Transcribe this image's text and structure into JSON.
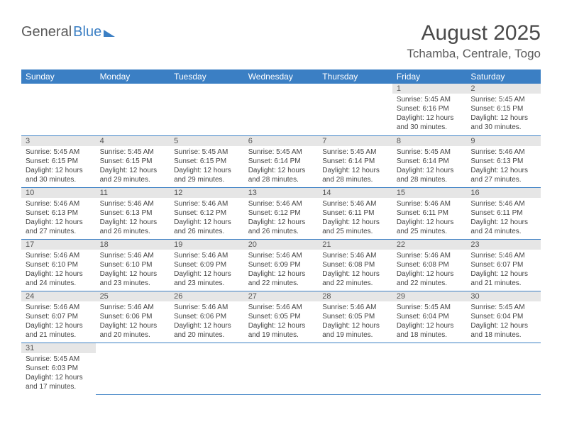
{
  "brand": {
    "text1": "General",
    "text2": "Blue"
  },
  "title": "August 2025",
  "location": "Tchamba, Centrale, Togo",
  "day_headers": [
    "Sunday",
    "Monday",
    "Tuesday",
    "Wednesday",
    "Thursday",
    "Friday",
    "Saturday"
  ],
  "colors": {
    "header_bg": "#3b7fc4",
    "header_fg": "#ffffff",
    "daynum_bg": "#e6e6e6",
    "row_border": "#3b7fc4",
    "text": "#444444",
    "title_color": "#4a4a4a"
  },
  "weeks": [
    [
      null,
      null,
      null,
      null,
      null,
      {
        "n": "1",
        "sr": "5:45 AM",
        "ss": "6:16 PM",
        "dl": "12 hours and 30 minutes."
      },
      {
        "n": "2",
        "sr": "5:45 AM",
        "ss": "6:15 PM",
        "dl": "12 hours and 30 minutes."
      }
    ],
    [
      {
        "n": "3",
        "sr": "5:45 AM",
        "ss": "6:15 PM",
        "dl": "12 hours and 30 minutes."
      },
      {
        "n": "4",
        "sr": "5:45 AM",
        "ss": "6:15 PM",
        "dl": "12 hours and 29 minutes."
      },
      {
        "n": "5",
        "sr": "5:45 AM",
        "ss": "6:15 PM",
        "dl": "12 hours and 29 minutes."
      },
      {
        "n": "6",
        "sr": "5:45 AM",
        "ss": "6:14 PM",
        "dl": "12 hours and 28 minutes."
      },
      {
        "n": "7",
        "sr": "5:45 AM",
        "ss": "6:14 PM",
        "dl": "12 hours and 28 minutes."
      },
      {
        "n": "8",
        "sr": "5:45 AM",
        "ss": "6:14 PM",
        "dl": "12 hours and 28 minutes."
      },
      {
        "n": "9",
        "sr": "5:46 AM",
        "ss": "6:13 PM",
        "dl": "12 hours and 27 minutes."
      }
    ],
    [
      {
        "n": "10",
        "sr": "5:46 AM",
        "ss": "6:13 PM",
        "dl": "12 hours and 27 minutes."
      },
      {
        "n": "11",
        "sr": "5:46 AM",
        "ss": "6:13 PM",
        "dl": "12 hours and 26 minutes."
      },
      {
        "n": "12",
        "sr": "5:46 AM",
        "ss": "6:12 PM",
        "dl": "12 hours and 26 minutes."
      },
      {
        "n": "13",
        "sr": "5:46 AM",
        "ss": "6:12 PM",
        "dl": "12 hours and 26 minutes."
      },
      {
        "n": "14",
        "sr": "5:46 AM",
        "ss": "6:11 PM",
        "dl": "12 hours and 25 minutes."
      },
      {
        "n": "15",
        "sr": "5:46 AM",
        "ss": "6:11 PM",
        "dl": "12 hours and 25 minutes."
      },
      {
        "n": "16",
        "sr": "5:46 AM",
        "ss": "6:11 PM",
        "dl": "12 hours and 24 minutes."
      }
    ],
    [
      {
        "n": "17",
        "sr": "5:46 AM",
        "ss": "6:10 PM",
        "dl": "12 hours and 24 minutes."
      },
      {
        "n": "18",
        "sr": "5:46 AM",
        "ss": "6:10 PM",
        "dl": "12 hours and 23 minutes."
      },
      {
        "n": "19",
        "sr": "5:46 AM",
        "ss": "6:09 PM",
        "dl": "12 hours and 23 minutes."
      },
      {
        "n": "20",
        "sr": "5:46 AM",
        "ss": "6:09 PM",
        "dl": "12 hours and 22 minutes."
      },
      {
        "n": "21",
        "sr": "5:46 AM",
        "ss": "6:08 PM",
        "dl": "12 hours and 22 minutes."
      },
      {
        "n": "22",
        "sr": "5:46 AM",
        "ss": "6:08 PM",
        "dl": "12 hours and 22 minutes."
      },
      {
        "n": "23",
        "sr": "5:46 AM",
        "ss": "6:07 PM",
        "dl": "12 hours and 21 minutes."
      }
    ],
    [
      {
        "n": "24",
        "sr": "5:46 AM",
        "ss": "6:07 PM",
        "dl": "12 hours and 21 minutes."
      },
      {
        "n": "25",
        "sr": "5:46 AM",
        "ss": "6:06 PM",
        "dl": "12 hours and 20 minutes."
      },
      {
        "n": "26",
        "sr": "5:46 AM",
        "ss": "6:06 PM",
        "dl": "12 hours and 20 minutes."
      },
      {
        "n": "27",
        "sr": "5:46 AM",
        "ss": "6:05 PM",
        "dl": "12 hours and 19 minutes."
      },
      {
        "n": "28",
        "sr": "5:46 AM",
        "ss": "6:05 PM",
        "dl": "12 hours and 19 minutes."
      },
      {
        "n": "29",
        "sr": "5:45 AM",
        "ss": "6:04 PM",
        "dl": "12 hours and 18 minutes."
      },
      {
        "n": "30",
        "sr": "5:45 AM",
        "ss": "6:04 PM",
        "dl": "12 hours and 18 minutes."
      }
    ],
    [
      {
        "n": "31",
        "sr": "5:45 AM",
        "ss": "6:03 PM",
        "dl": "12 hours and 17 minutes."
      },
      null,
      null,
      null,
      null,
      null,
      null
    ]
  ],
  "labels": {
    "sunrise": "Sunrise: ",
    "sunset": "Sunset: ",
    "daylight": "Daylight: "
  }
}
